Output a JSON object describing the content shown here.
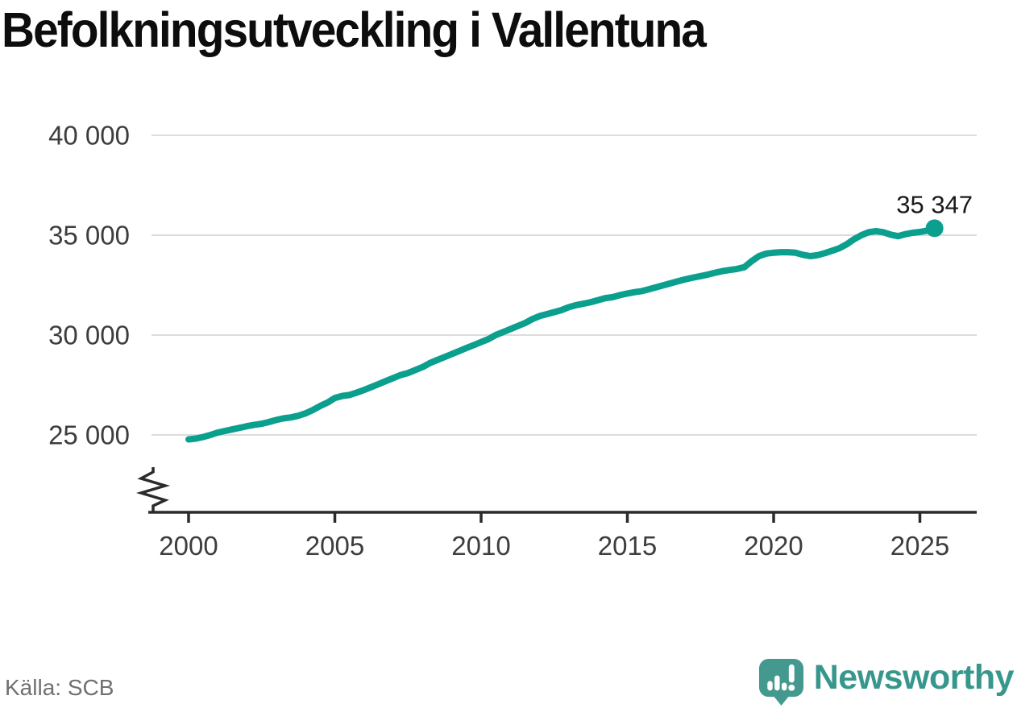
{
  "header": {
    "title": "Befolkningsutveckling i Vallentuna"
  },
  "footer": {
    "source": "Källa: SCB",
    "logo_text": "Newsworthy"
  },
  "colors": {
    "line": "#0b9f8e",
    "logo_bubble": "#44998f",
    "wordmark": "#37978c",
    "grid": "#dcdcdc",
    "axis": "#2b2b2b"
  },
  "chart_data": {
    "type": "line",
    "title": "Befolkningsutveckling i Vallentuna",
    "xlabel": "",
    "ylabel": "",
    "grid": true,
    "legend": "none",
    "axis_break_bottom": true,
    "xlim": [
      1998.7,
      2026.3
    ],
    "ylim": [
      22500,
      40500
    ],
    "y_ticks": [
      {
        "value": 25000,
        "label": "25 000"
      },
      {
        "value": 30000,
        "label": "30 000"
      },
      {
        "value": 35000,
        "label": "35 000"
      },
      {
        "value": 40000,
        "label": "40 000"
      }
    ],
    "x_ticks": [
      {
        "value": 2000,
        "label": "2000"
      },
      {
        "value": 2005,
        "label": "2005"
      },
      {
        "value": 2010,
        "label": "2010"
      },
      {
        "value": 2015,
        "label": "2015"
      },
      {
        "value": 2020,
        "label": "2020"
      },
      {
        "value": 2025,
        "label": "2025"
      }
    ],
    "end_annotation": {
      "label": "35 347",
      "x": 2025.5,
      "y": 35347
    },
    "series": [
      {
        "points": [
          [
            2000.0,
            24780
          ],
          [
            2000.25,
            24820
          ],
          [
            2000.5,
            24900
          ],
          [
            2000.75,
            25000
          ],
          [
            2001.0,
            25120
          ],
          [
            2001.25,
            25200
          ],
          [
            2001.5,
            25280
          ],
          [
            2001.75,
            25360
          ],
          [
            2002.0,
            25440
          ],
          [
            2002.25,
            25510
          ],
          [
            2002.5,
            25560
          ],
          [
            2002.75,
            25650
          ],
          [
            2003.0,
            25750
          ],
          [
            2003.25,
            25830
          ],
          [
            2003.5,
            25880
          ],
          [
            2003.75,
            25960
          ],
          [
            2004.0,
            26080
          ],
          [
            2004.25,
            26250
          ],
          [
            2004.5,
            26450
          ],
          [
            2004.75,
            26620
          ],
          [
            2005.0,
            26850
          ],
          [
            2005.25,
            26950
          ],
          [
            2005.5,
            27000
          ],
          [
            2005.75,
            27120
          ],
          [
            2006.0,
            27250
          ],
          [
            2006.25,
            27400
          ],
          [
            2006.5,
            27550
          ],
          [
            2006.75,
            27700
          ],
          [
            2007.0,
            27850
          ],
          [
            2007.25,
            28000
          ],
          [
            2007.5,
            28100
          ],
          [
            2007.75,
            28250
          ],
          [
            2008.0,
            28400
          ],
          [
            2008.25,
            28600
          ],
          [
            2008.5,
            28750
          ],
          [
            2008.75,
            28900
          ],
          [
            2009.0,
            29050
          ],
          [
            2009.25,
            29200
          ],
          [
            2009.5,
            29350
          ],
          [
            2009.75,
            29500
          ],
          [
            2010.0,
            29650
          ],
          [
            2010.25,
            29800
          ],
          [
            2010.5,
            30000
          ],
          [
            2010.75,
            30150
          ],
          [
            2011.0,
            30300
          ],
          [
            2011.25,
            30450
          ],
          [
            2011.5,
            30600
          ],
          [
            2011.75,
            30800
          ],
          [
            2012.0,
            30950
          ],
          [
            2012.25,
            31050
          ],
          [
            2012.5,
            31150
          ],
          [
            2012.75,
            31250
          ],
          [
            2013.0,
            31400
          ],
          [
            2013.25,
            31500
          ],
          [
            2013.5,
            31570
          ],
          [
            2013.75,
            31650
          ],
          [
            2014.0,
            31750
          ],
          [
            2014.25,
            31850
          ],
          [
            2014.5,
            31900
          ],
          [
            2014.75,
            32000
          ],
          [
            2015.0,
            32080
          ],
          [
            2015.25,
            32150
          ],
          [
            2015.5,
            32200
          ],
          [
            2015.75,
            32300
          ],
          [
            2016.0,
            32400
          ],
          [
            2016.25,
            32500
          ],
          [
            2016.5,
            32600
          ],
          [
            2016.75,
            32700
          ],
          [
            2017.0,
            32800
          ],
          [
            2017.25,
            32880
          ],
          [
            2017.5,
            32950
          ],
          [
            2017.75,
            33030
          ],
          [
            2018.0,
            33120
          ],
          [
            2018.25,
            33200
          ],
          [
            2018.5,
            33260
          ],
          [
            2018.75,
            33310
          ],
          [
            2019.0,
            33400
          ],
          [
            2019.25,
            33700
          ],
          [
            2019.5,
            33950
          ],
          [
            2019.75,
            34080
          ],
          [
            2020.0,
            34120
          ],
          [
            2020.25,
            34150
          ],
          [
            2020.5,
            34150
          ],
          [
            2020.75,
            34120
          ],
          [
            2021.0,
            34020
          ],
          [
            2021.25,
            33950
          ],
          [
            2021.5,
            34000
          ],
          [
            2021.75,
            34100
          ],
          [
            2022.0,
            34220
          ],
          [
            2022.25,
            34350
          ],
          [
            2022.5,
            34550
          ],
          [
            2022.75,
            34800
          ],
          [
            2023.0,
            35000
          ],
          [
            2023.25,
            35150
          ],
          [
            2023.5,
            35200
          ],
          [
            2023.75,
            35150
          ],
          [
            2024.0,
            35030
          ],
          [
            2024.25,
            34950
          ],
          [
            2024.5,
            35050
          ],
          [
            2024.75,
            35120
          ],
          [
            2025.0,
            35160
          ],
          [
            2025.25,
            35230
          ],
          [
            2025.5,
            35347
          ]
        ]
      }
    ]
  }
}
